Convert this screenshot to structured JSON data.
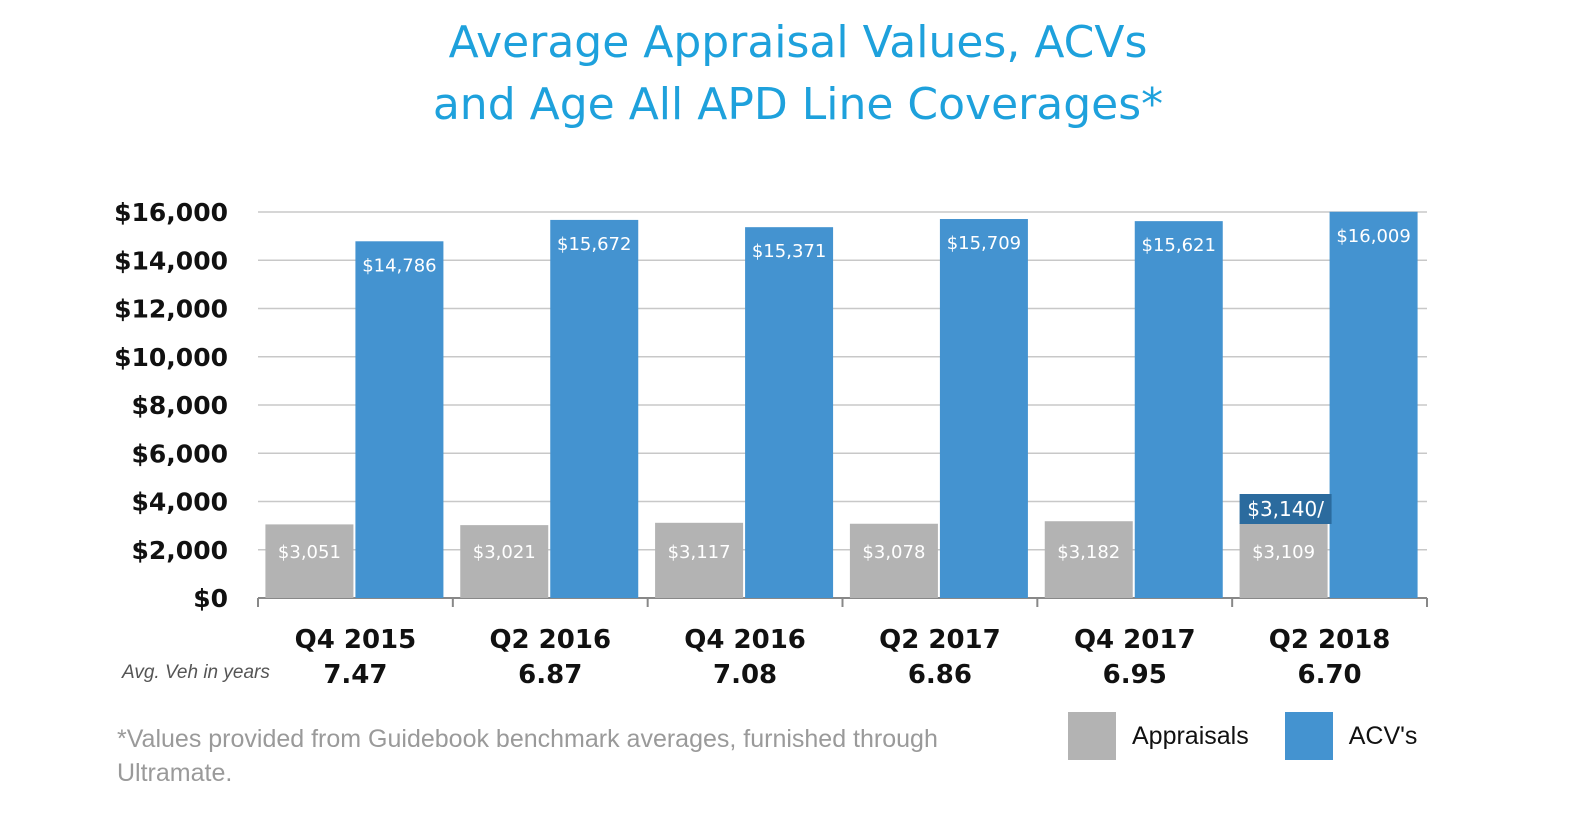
{
  "colors": {
    "title": "#1ea1dc",
    "acv": "#4493d0",
    "appraisal": "#b3b3b3",
    "callout": "#2b6b9e",
    "grid": "#c8c8c8",
    "axis": "#888888"
  },
  "chart_data": {
    "type": "bar",
    "title": "Average Appraisal Values, ACVs and Age All APD Line Coverages*",
    "title_lines": [
      "Average Appraisal Values, ACVs",
      "and Age All APD Line Coverages*"
    ],
    "categories": [
      "Q4 2015",
      "Q2 2016",
      "Q4 2016",
      "Q2 2017",
      "Q4 2017",
      "Q2 2018"
    ],
    "secondary_row_label": "Avg. Veh in years",
    "avg_vehicle_age": [
      "7.47",
      "6.87",
      "7.08",
      "6.86",
      "6.95",
      "6.70"
    ],
    "series": [
      {
        "name": "Appraisals",
        "values": [
          3051,
          3021,
          3117,
          3078,
          3182,
          3109
        ],
        "labels": [
          "$3,051",
          "$3,021",
          "$3,117",
          "$3,078",
          "$3,182",
          "$3,109"
        ]
      },
      {
        "name": "ACV's",
        "values": [
          14786,
          15672,
          15371,
          15709,
          15621,
          16009
        ],
        "labels": [
          "$14,786",
          "$15,672",
          "$15,371",
          "$15,709",
          "$15,621",
          "$16,009"
        ]
      }
    ],
    "callout": {
      "category_index": 5,
      "text": "$3,140/"
    },
    "ylim": [
      0,
      16000
    ],
    "yticks": [
      0,
      2000,
      4000,
      6000,
      8000,
      10000,
      12000,
      14000,
      16000
    ],
    "ytick_labels": [
      "$0",
      "$2,000",
      "$4,000",
      "$6,000",
      "$8,000",
      "$10,000",
      "$12,000",
      "$14,000",
      "$16,000"
    ],
    "xlabel": "",
    "ylabel": "",
    "grid": true,
    "legend_position": "bottom-right",
    "legend": [
      "Appraisals",
      "ACV's"
    ]
  },
  "footnote": "*Values provided from Guidebook benchmark averages, furnished through Ultramate."
}
